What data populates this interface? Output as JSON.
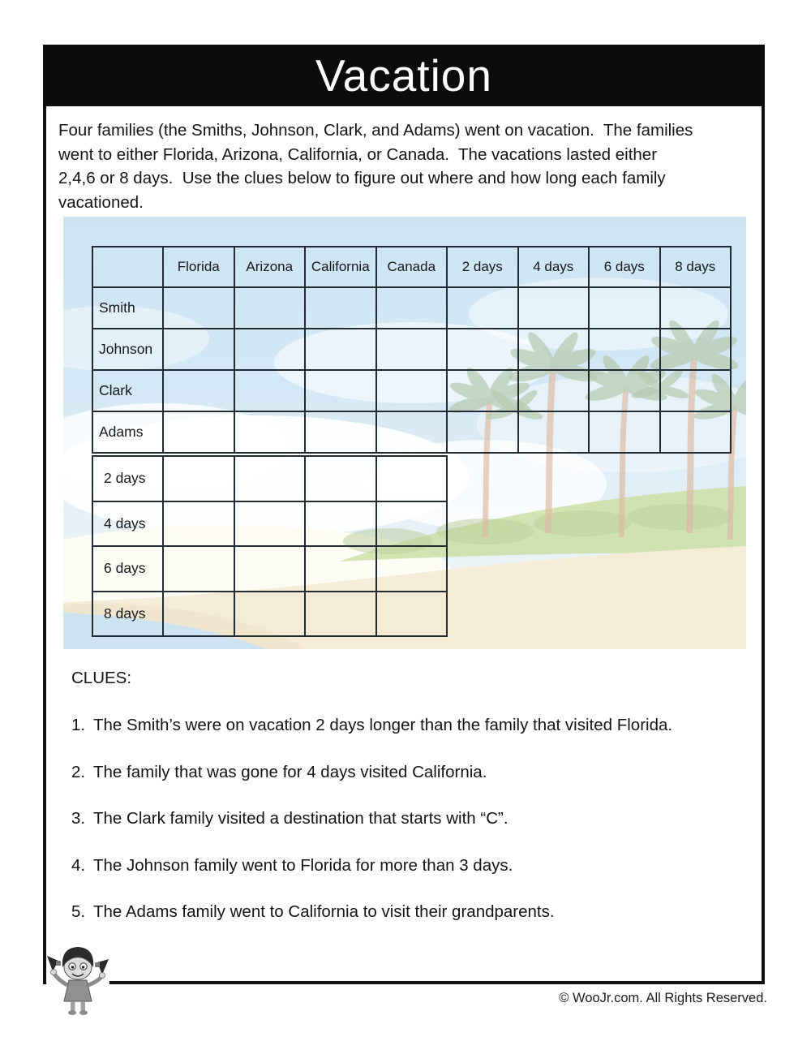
{
  "title": "Vacation",
  "intro_lines": [
    "Four families (the Smiths, Johnson, Clark, and Adams) went on vacation.  The families",
    "went to either Florida, Arizona, California, or Canada.  The vacations lasted either",
    "2,4,6 or 8 days.  Use the clues below to figure out where and how long each family",
    "vacationed."
  ],
  "grid": {
    "column_headers": [
      "Florida",
      "Arizona",
      "California",
      "Canada",
      "2 days",
      "4 days",
      "6 days",
      "8 days"
    ],
    "family_rows": [
      "Smith",
      "Johnson",
      "Clark",
      "Adams"
    ],
    "duration_rows": [
      "2 days",
      "4 days",
      "6 days",
      "8 days"
    ]
  },
  "clues": {
    "heading": "CLUES:",
    "items": [
      {
        "num": "1.",
        "text": "The Smith’s were on vacation 2 days longer than the family that visited Florida."
      },
      {
        "num": "2.",
        "text": "The family that was gone for 4 days visited California."
      },
      {
        "num": "3.",
        "text": "The Clark family visited a destination that starts with “C”."
      },
      {
        "num": "4.",
        "text": "The Johnson family went to Florida for more than 3 days."
      },
      {
        "num": "5.",
        "text": "The Adams family went to California to visit their grandparents."
      }
    ]
  },
  "footer": {
    "copyright": "© WooJr.com. All Rights Reserved."
  },
  "colors": {
    "bar": "#0c0c0c",
    "grid_line": "#232b33",
    "sky": "#cde5f3",
    "cloud": "#ffffff",
    "palm": "#b7cab2",
    "trunk": "#e2bda4",
    "grass": "#cddfa6",
    "sand": "#f5ecd7",
    "water": "#cde3f0"
  }
}
